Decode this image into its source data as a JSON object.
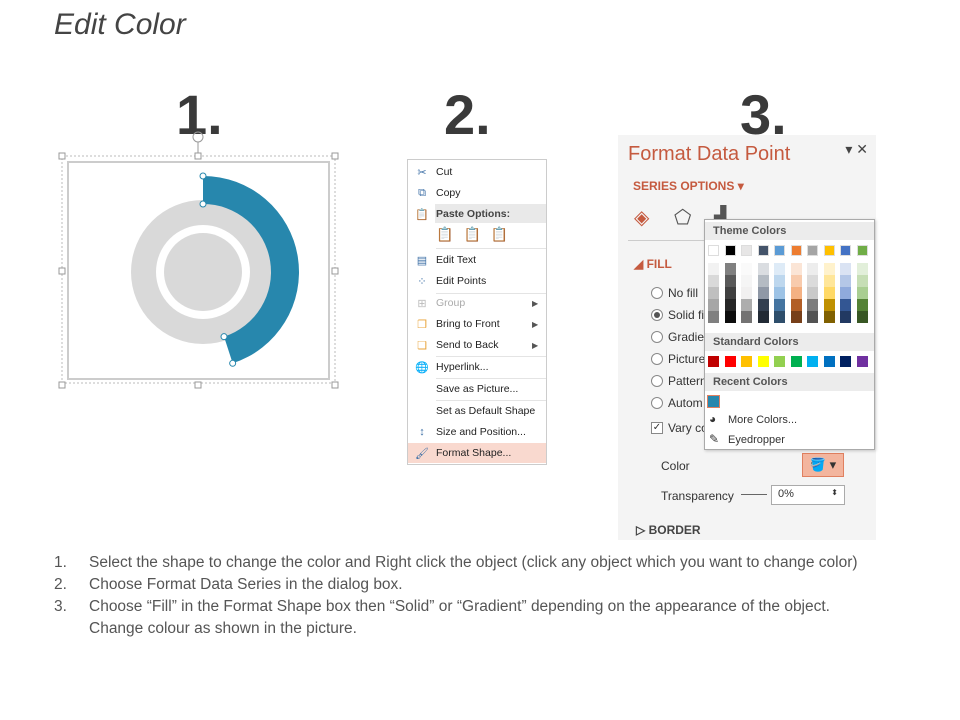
{
  "title": "Edit Color",
  "step_numbers": [
    "1.",
    "2.",
    "3."
  ],
  "donut": {
    "arc_color": "#2787ad",
    "ring_color": "#d9d9d9",
    "arc_fraction": 0.45
  },
  "context_menu": {
    "items": [
      {
        "label": "Cut",
        "icon": "scissors-icon"
      },
      {
        "label": "Copy",
        "icon": "copy-icon"
      },
      {
        "label": "Paste Options:",
        "icon": "paste-icon"
      },
      {
        "label": "Edit Text",
        "icon": "edit-text-icon"
      },
      {
        "label": "Edit Points",
        "icon": "edit-points-icon"
      },
      {
        "label": "Group",
        "icon": "group-icon"
      },
      {
        "label": "Bring to Front",
        "icon": "bring-front-icon"
      },
      {
        "label": "Send to Back",
        "icon": "send-back-icon"
      },
      {
        "label": "Hyperlink...",
        "icon": "hyperlink-icon"
      },
      {
        "label": "Save as Picture..."
      },
      {
        "label": "Set as Default Shape"
      },
      {
        "label": "Size and Position...",
        "icon": "size-position-icon"
      },
      {
        "label": "Format Shape...",
        "icon": "format-shape-icon"
      }
    ]
  },
  "panel": {
    "title": "Format Data Point",
    "series_options": "SERIES OPTIONS",
    "fill_label": "FILL",
    "options": [
      "No fill",
      "Solid fi",
      "Gradie",
      "Picture",
      "Pattern",
      "Autom"
    ],
    "vary": "Vary co",
    "color_label": "Color",
    "transparency_label": "Transparency",
    "transparency_value": "0%",
    "border_label": "BORDER"
  },
  "picker": {
    "theme_header": "Theme Colors",
    "theme_colors": [
      "#ffffff",
      "#000000",
      "#e7e6e6",
      "#44546a",
      "#5b9bd5",
      "#ed7d31",
      "#a5a5a5",
      "#ffc000",
      "#4472c4",
      "#70ad47"
    ],
    "standard_header": "Standard Colors",
    "standard_colors": [
      "#c00000",
      "#ff0000",
      "#ffc000",
      "#ffff00",
      "#92d050",
      "#00b050",
      "#00b0f0",
      "#0070c0",
      "#002060",
      "#7030a0"
    ],
    "recent_header": "Recent Colors",
    "recent_colors": [
      "#2787ad"
    ],
    "more_colors": "More Colors...",
    "eyedropper": "Eyedropper"
  },
  "steps": [
    {
      "n": "1.",
      "text": "Select the shape to change the color and Right click the object (click any object which you want to change color)"
    },
    {
      "n": "2.",
      "text": "Choose Format Data Series in the dialog box."
    },
    {
      "n": "3.",
      "text": "Choose “Fill” in the Format Shape box then “Solid” or “Gradient” depending on the appearance of the object. Change colour as shown in the picture."
    }
  ]
}
